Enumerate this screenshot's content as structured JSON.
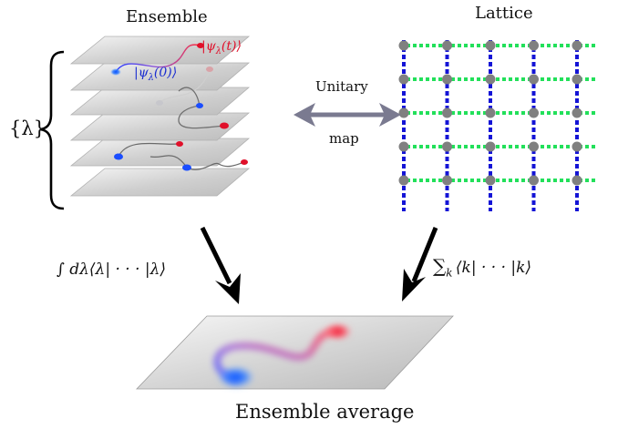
{
  "titles": {
    "ensemble": "Ensemble",
    "lattice": "Lattice",
    "ensemble_average": "Ensemble average"
  },
  "labels": {
    "lambda_set": "{λ}",
    "psi_t": "|ψ",
    "psi_t_sub": "λ",
    "psi_t_arg": "(t)⟩",
    "psi_0": "|ψ",
    "psi_0_sub": "λ",
    "psi_0_arg": "(0)⟩",
    "unitary": "Unitary",
    "map": "map",
    "integral_formula": "∫ dλ⟨λ| · · · |λ⟩",
    "sum_symbol": "∑",
    "sum_sub": "k",
    "sum_body": "⟨k| · · · |k⟩"
  },
  "colors": {
    "blue_state": "#1a4dff",
    "red_state": "#e0102a",
    "lattice_vertical": "#1414d6",
    "lattice_horizontal": "#22e05a",
    "lattice_node": "#808080",
    "arrow": "#7a7a90"
  },
  "lattice": {
    "rows": 5,
    "cols": 5
  },
  "ensemble_planes": 6
}
